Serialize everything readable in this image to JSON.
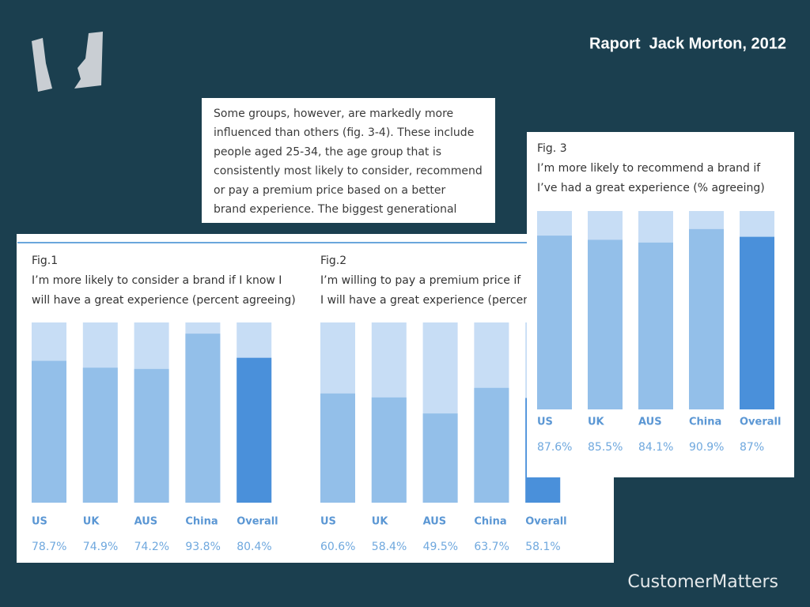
{
  "title": "Raport  Jack Morton, 2012",
  "excerpt": [
    "Some groups, however, are markedly more",
    "influenced than others (fig. 3-4). These include",
    "people aged 25-34, the age group that is",
    "consistently most likely to consider, recommend",
    "or pay a premium price based on a better",
    "brand experience. The biggest generational"
  ],
  "brand": "CustomerMatters",
  "chart_data": [
    {
      "type": "bar",
      "label": "Fig.1",
      "title": [
        "I’m more likely to consider a brand if I know I",
        "will have a great experience (percent agreeing)"
      ],
      "categories": [
        "US",
        "UK",
        "AUS",
        "China",
        "Overall"
      ],
      "values": [
        78.7,
        74.9,
        74.2,
        93.8,
        80.4
      ],
      "value_labels": [
        "78.7%",
        "74.9%",
        "74.2%",
        "93.8%",
        "80.4%"
      ],
      "colors": [
        "#93bfe9",
        "#93bfe9",
        "#93bfe9",
        "#93bfe9",
        "#4a90da"
      ],
      "background_color": "#c7ddf5",
      "ylim": [
        0,
        100
      ]
    },
    {
      "type": "bar",
      "label": "Fig.2",
      "title": [
        "I’m willing to pay a premium price if",
        "I will have a great experience (percent agreeing)"
      ],
      "categories": [
        "US",
        "UK",
        "AUS",
        "China",
        "Overall"
      ],
      "values": [
        60.6,
        58.4,
        49.5,
        63.7,
        58.1
      ],
      "value_labels": [
        "60.6%",
        "58.4%",
        "49.5%",
        "63.7%",
        "58.1%"
      ],
      "colors": [
        "#93bfe9",
        "#93bfe9",
        "#93bfe9",
        "#93bfe9",
        "#4a90da"
      ],
      "background_color": "#c7ddf5",
      "ylim": [
        0,
        100
      ]
    },
    {
      "type": "bar",
      "label": "Fig. 3",
      "title": [
        "I’m more likely to recommend a brand if",
        "I’ve had a great experience (% agreeing)"
      ],
      "categories": [
        "US",
        "UK",
        "AUS",
        "China",
        "Overall"
      ],
      "values": [
        87.6,
        85.5,
        84.1,
        90.9,
        87
      ],
      "value_labels": [
        "87.6%",
        "85.5%",
        "84.1%",
        "90.9%",
        "87%"
      ],
      "colors": [
        "#93bfe9",
        "#93bfe9",
        "#93bfe9",
        "#93bfe9",
        "#4a90da"
      ],
      "background_color": "#c7ddf5",
      "ylim": [
        0,
        100
      ]
    }
  ]
}
